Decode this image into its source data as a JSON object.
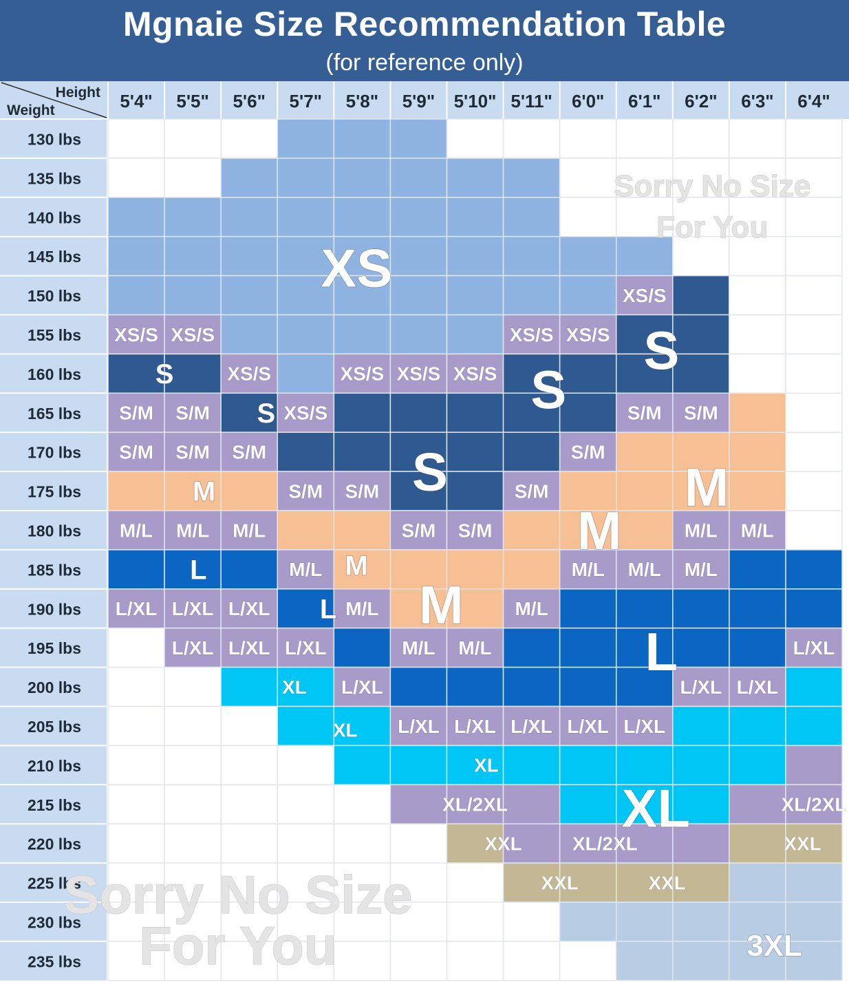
{
  "title": "Mgnaie Size Recommendation Table",
  "subtitle": "(for reference only)",
  "chart_data": {
    "type": "table",
    "corner": {
      "column_axis_label": "Height",
      "row_axis_label": "Weight"
    },
    "columns": [
      "5'4\"",
      "5'5\"",
      "5'6\"",
      "5'7\"",
      "5'8\"",
      "5'9\"",
      "5'10\"",
      "5'11\"",
      "6'0\"",
      "6'1\"",
      "6'2\"",
      "6'3\"",
      "6'4\""
    ],
    "rows": [
      "130 lbs",
      "135 lbs",
      "140 lbs",
      "145 lbs",
      "150 lbs",
      "155 lbs",
      "160 lbs",
      "165 lbs",
      "170 lbs",
      "175 lbs",
      "180 lbs",
      "185 lbs",
      "190 lbs",
      "195 lbs",
      "200 lbs",
      "205 lbs",
      "210 lbs",
      "215 lbs",
      "220 lbs",
      "225 lbs",
      "230 lbs",
      "235 lbs"
    ],
    "size_colors": {
      "XS": "#8fb4e1",
      "XS/S": "#a99bc9",
      "S": "#2f5a91",
      "S/M": "#a99bc9",
      "M": "#f7bf94",
      "M/L": "#a99bc9",
      "L": "#0a66c2",
      "L/XL": "#a99bc9",
      "XL": "#00c6f5",
      "XL/2XL": "#a99bc9",
      "XXL": "#c3b893",
      "3XL": "#b8cce4"
    },
    "cells": [
      [
        "",
        "",
        "",
        "XS",
        "XS",
        "XS",
        "",
        "",
        "",
        "",
        "",
        "",
        ""
      ],
      [
        "",
        "",
        "XS",
        "XS",
        "XS",
        "XS",
        "XS",
        "XS",
        "",
        "",
        "",
        "",
        ""
      ],
      [
        "XS",
        "XS",
        "XS",
        "XS",
        "XS",
        "XS",
        "XS",
        "XS",
        "",
        "",
        "",
        "",
        ""
      ],
      [
        "XS",
        "XS",
        "XS",
        "XS",
        "XS",
        "XS",
        "XS",
        "XS",
        "XS",
        "XS",
        "",
        "",
        ""
      ],
      [
        "XS",
        "XS",
        "XS",
        "XS",
        "XS",
        "XS",
        "XS",
        "XS",
        "XS",
        "XS/S",
        "S",
        "",
        ""
      ],
      [
        "XS/S",
        "XS/S",
        "XS",
        "XS",
        "XS",
        "XS",
        "XS",
        "XS/S",
        "XS/S",
        "S",
        "S",
        "",
        ""
      ],
      [
        "S",
        "S",
        "XS/S",
        "XS",
        "XS/S",
        "XS/S",
        "XS/S",
        "S",
        "S",
        "S",
        "S",
        "",
        ""
      ],
      [
        "S/M",
        "S/M",
        "S",
        "XS/S",
        "S",
        "S",
        "S",
        "S",
        "S",
        "S/M",
        "S/M",
        "M",
        ""
      ],
      [
        "S/M",
        "S/M",
        "S/M",
        "S",
        "S",
        "S",
        "S",
        "S",
        "S/M",
        "M",
        "M",
        "M",
        ""
      ],
      [
        "M",
        "M",
        "M",
        "S/M",
        "S/M",
        "S",
        "S",
        "S/M",
        "M",
        "M",
        "M",
        "M",
        ""
      ],
      [
        "M/L",
        "M/L",
        "M/L",
        "M",
        "M",
        "S/M",
        "S/M",
        "M",
        "M",
        "M",
        "M/L",
        "M/L",
        ""
      ],
      [
        "L",
        "L",
        "L",
        "M/L",
        "M",
        "M",
        "M",
        "M",
        "M/L",
        "M/L",
        "M/L",
        "L",
        "L"
      ],
      [
        "L/XL",
        "L/XL",
        "L/XL",
        "L",
        "M/L",
        "M",
        "M",
        "M/L",
        "L",
        "L",
        "L",
        "L",
        "L"
      ],
      [
        "",
        "L/XL",
        "L/XL",
        "L/XL",
        "L",
        "M/L",
        "M/L",
        "L",
        "L",
        "L",
        "L",
        "L",
        "L/XL"
      ],
      [
        "",
        "",
        "XL",
        "XL",
        "L/XL",
        "L",
        "L",
        "L",
        "L",
        "L",
        "L/XL",
        "L/XL",
        "XL"
      ],
      [
        "",
        "",
        "",
        "XL",
        "XL",
        "L/XL",
        "L/XL",
        "L/XL",
        "L/XL",
        "L/XL",
        "XL",
        "XL",
        "XL"
      ],
      [
        "",
        "",
        "",
        "",
        "XL",
        "XL",
        "XL",
        "XL",
        "XL",
        "XL",
        "XL",
        "XL",
        "XL/2XL"
      ],
      [
        "",
        "",
        "",
        "",
        "",
        "XL/2XL",
        "XL/2XL",
        "XL/2XL",
        "XL",
        "XL",
        "XL",
        "XL/2XL",
        "XL/2XL"
      ],
      [
        "",
        "",
        "",
        "",
        "",
        "",
        "XXL",
        "XL/2XL",
        "XL/2XL",
        "XL/2XL",
        "XL/2XL",
        "XXL",
        "XXL"
      ],
      [
        "",
        "",
        "",
        "",
        "",
        "",
        "",
        "XXL",
        "XXL",
        "XXL",
        "XXL",
        "3XL",
        "3XL"
      ],
      [
        "",
        "",
        "",
        "",
        "",
        "",
        "",
        "",
        "3XL",
        "3XL",
        "3XL",
        "3XL",
        "3XL"
      ],
      [
        "",
        "",
        "",
        "",
        "",
        "",
        "",
        "",
        "",
        "3XL",
        "3XL",
        "3XL",
        "3XL"
      ]
    ],
    "printed_labels": [
      {
        "text": "XS/S",
        "row": 4,
        "col": 9,
        "size": "s"
      },
      {
        "text": "XS/S",
        "row": 5,
        "col": 0,
        "size": "s"
      },
      {
        "text": "XS/S",
        "row": 5,
        "col": 1,
        "size": "s"
      },
      {
        "text": "XS/S",
        "row": 5,
        "col": 7,
        "size": "s"
      },
      {
        "text": "XS/S",
        "row": 5,
        "col": 8,
        "size": "s"
      },
      {
        "text": "XS/S",
        "row": 6,
        "col": 2,
        "size": "s"
      },
      {
        "text": "XS/S",
        "row": 6,
        "col": 4,
        "size": "s"
      },
      {
        "text": "XS/S",
        "row": 6,
        "col": 5,
        "size": "s"
      },
      {
        "text": "XS/S",
        "row": 6,
        "col": 6,
        "size": "s"
      },
      {
        "text": "XS/S",
        "row": 7,
        "col": 3,
        "size": "s"
      },
      {
        "text": "S/M",
        "row": 7,
        "col": 0,
        "size": "s"
      },
      {
        "text": "S/M",
        "row": 7,
        "col": 1,
        "size": "s"
      },
      {
        "text": "S/M",
        "row": 7,
        "col": 9,
        "size": "s"
      },
      {
        "text": "S/M",
        "row": 7,
        "col": 10,
        "size": "s"
      },
      {
        "text": "S/M",
        "row": 8,
        "col": 0,
        "size": "s"
      },
      {
        "text": "S/M",
        "row": 8,
        "col": 1,
        "size": "s"
      },
      {
        "text": "S/M",
        "row": 8,
        "col": 2,
        "size": "s"
      },
      {
        "text": "S/M",
        "row": 8,
        "col": 8,
        "size": "s"
      },
      {
        "text": "S/M",
        "row": 9,
        "col": 3,
        "size": "s"
      },
      {
        "text": "S/M",
        "row": 9,
        "col": 4,
        "size": "s"
      },
      {
        "text": "S/M",
        "row": 9,
        "col": 7,
        "size": "s"
      },
      {
        "text": "S/M",
        "row": 10,
        "col": 5,
        "size": "s"
      },
      {
        "text": "S/M",
        "row": 10,
        "col": 6,
        "size": "s"
      },
      {
        "text": "M/L",
        "row": 10,
        "col": 0,
        "size": "s"
      },
      {
        "text": "M/L",
        "row": 10,
        "col": 1,
        "size": "s"
      },
      {
        "text": "M/L",
        "row": 10,
        "col": 2,
        "size": "s"
      },
      {
        "text": "M/L",
        "row": 10,
        "col": 10,
        "size": "s"
      },
      {
        "text": "M/L",
        "row": 10,
        "col": 11,
        "size": "s"
      },
      {
        "text": "M/L",
        "row": 11,
        "col": 3,
        "size": "s"
      },
      {
        "text": "M/L",
        "row": 11,
        "col": 8,
        "size": "s"
      },
      {
        "text": "M/L",
        "row": 11,
        "col": 9,
        "size": "s"
      },
      {
        "text": "M/L",
        "row": 11,
        "col": 10,
        "size": "s"
      },
      {
        "text": "M/L",
        "row": 12,
        "col": 4,
        "size": "s"
      },
      {
        "text": "M/L",
        "row": 12,
        "col": 7,
        "size": "s"
      },
      {
        "text": "M/L",
        "row": 13,
        "col": 5,
        "size": "s"
      },
      {
        "text": "M/L",
        "row": 13,
        "col": 6,
        "size": "s"
      },
      {
        "text": "L/XL",
        "row": 12,
        "col": 0,
        "size": "s"
      },
      {
        "text": "L/XL",
        "row": 12,
        "col": 1,
        "size": "s"
      },
      {
        "text": "L/XL",
        "row": 12,
        "col": 2,
        "size": "s"
      },
      {
        "text": "L/XL",
        "row": 13,
        "col": 1,
        "size": "s"
      },
      {
        "text": "L/XL",
        "row": 13,
        "col": 2,
        "size": "s"
      },
      {
        "text": "L/XL",
        "row": 13,
        "col": 3,
        "size": "s"
      },
      {
        "text": "L/XL",
        "row": 13,
        "col": 12,
        "size": "s"
      },
      {
        "text": "L/XL",
        "row": 14,
        "col": 4,
        "size": "s"
      },
      {
        "text": "L/XL",
        "row": 14,
        "col": 10,
        "size": "s"
      },
      {
        "text": "L/XL",
        "row": 14,
        "col": 11,
        "size": "s"
      },
      {
        "text": "L/XL",
        "row": 15,
        "col": 5,
        "size": "s"
      },
      {
        "text": "L/XL",
        "row": 15,
        "col": 6,
        "size": "s"
      },
      {
        "text": "L/XL",
        "row": 15,
        "col": 7,
        "size": "s"
      },
      {
        "text": "L/XL",
        "row": 15,
        "col": 8,
        "size": "s"
      },
      {
        "text": "L/XL",
        "row": 15,
        "col": 9,
        "size": "s"
      },
      {
        "text": "XL/2XL",
        "row": 17,
        "col": 6,
        "size": "s"
      },
      {
        "text": "XL/2XL",
        "row": 17,
        "col": 12,
        "size": "s"
      },
      {
        "text": "XL/2XL",
        "row": 18,
        "col": 8.3,
        "size": "s"
      },
      {
        "text": "XXL",
        "row": 18,
        "col": 6.5,
        "size": "s"
      },
      {
        "text": "XXL",
        "row": 18,
        "col": 11.8,
        "size": "s"
      },
      {
        "text": "XXL",
        "row": 19,
        "col": 7.5,
        "size": "s"
      },
      {
        "text": "XXL",
        "row": 19,
        "col": 9.4,
        "size": "s"
      },
      {
        "text": "XS",
        "row": 3.3,
        "col": 3.9,
        "size": "xl"
      },
      {
        "text": "S",
        "row": 6,
        "col": 0.5,
        "size": "m"
      },
      {
        "text": "S",
        "row": 7,
        "col": 2.3,
        "size": "m"
      },
      {
        "text": "S",
        "row": 8.5,
        "col": 5.2,
        "size": "xl"
      },
      {
        "text": "S",
        "row": 6.4,
        "col": 7.3,
        "size": "xl"
      },
      {
        "text": "S",
        "row": 5.4,
        "col": 9.3,
        "size": "xl"
      },
      {
        "text": "M",
        "row": 9,
        "col": 1.2,
        "size": "m"
      },
      {
        "text": "M",
        "row": 10.9,
        "col": 3.9,
        "size": "m"
      },
      {
        "text": "M",
        "row": 11.9,
        "col": 5.4,
        "size": "xl"
      },
      {
        "text": "M",
        "row": 10,
        "col": 8.2,
        "size": "xl"
      },
      {
        "text": "M",
        "row": 8.9,
        "col": 10.1,
        "size": "xl"
      },
      {
        "text": "L",
        "row": 11,
        "col": 1.1,
        "size": "m"
      },
      {
        "text": "L",
        "row": 12,
        "col": 3.4,
        "size": "m"
      },
      {
        "text": "L",
        "row": 13.1,
        "col": 9.3,
        "size": "xl"
      },
      {
        "text": "XL",
        "row": 14,
        "col": 2.8,
        "size": "s"
      },
      {
        "text": "XL",
        "row": 15.1,
        "col": 3.7,
        "size": "s"
      },
      {
        "text": "XL",
        "row": 16,
        "col": 6.2,
        "size": "s"
      },
      {
        "text": "XL",
        "row": 17.1,
        "col": 9.2,
        "size": "xl"
      },
      {
        "text": "3XL",
        "row": 20.6,
        "col": 11.3,
        "size": "l"
      }
    ],
    "no_size_notes": [
      {
        "lines": [
          "Sorry No Size",
          "For You"
        ],
        "line_rows": [
          1.2,
          2.25
        ],
        "col": 10.2,
        "size": "l"
      },
      {
        "lines": [
          "Sorry No Size",
          "For You"
        ],
        "line_rows": [
          19.3,
          20.6
        ],
        "col": 1.8,
        "size": "xl"
      }
    ]
  }
}
